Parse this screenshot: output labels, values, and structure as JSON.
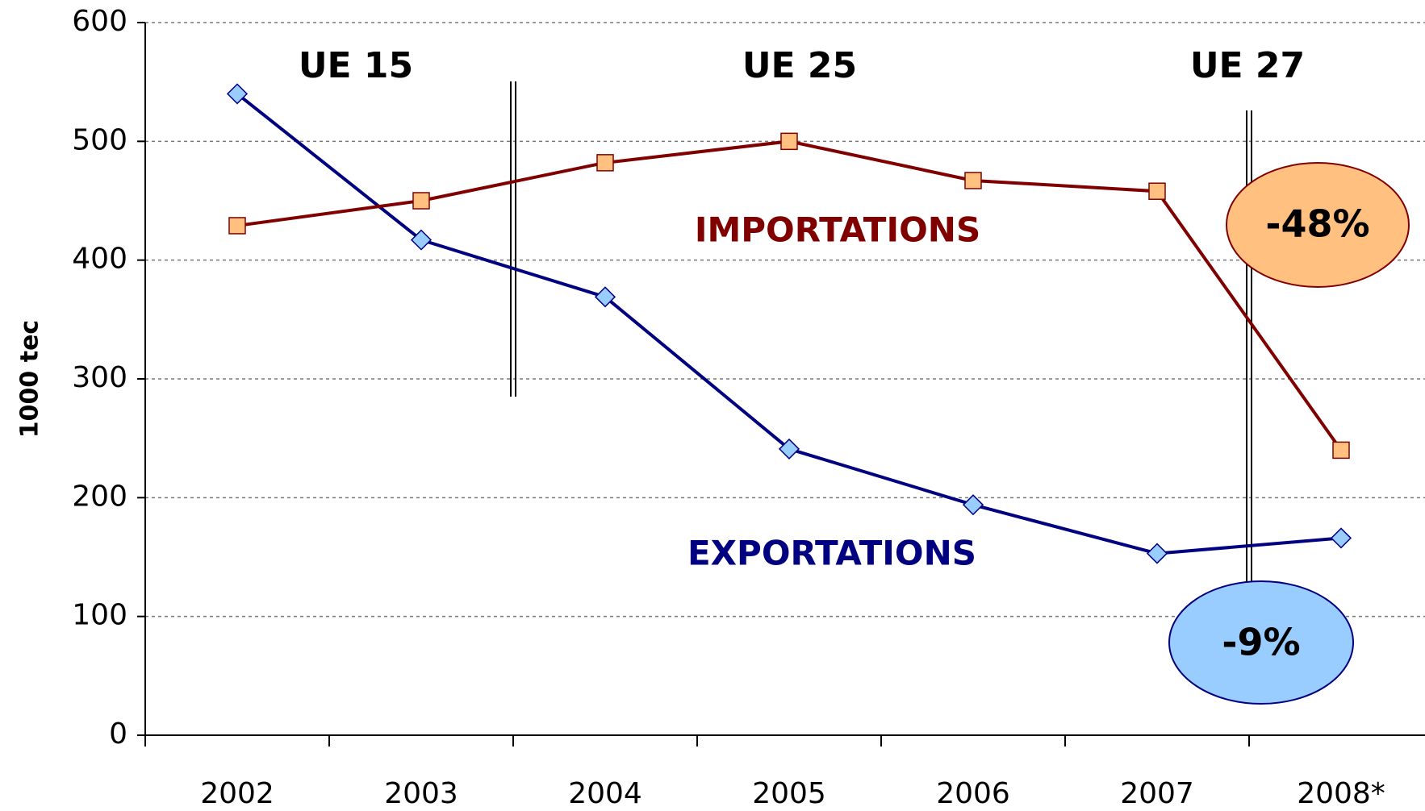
{
  "chart_data": {
    "type": "line",
    "ylabel": "1000 tec",
    "categories": [
      "2002",
      "2003",
      "2004",
      "2005",
      "2006",
      "2007",
      "2008*"
    ],
    "series": [
      {
        "name": "EXPORTATIONS",
        "color": "#000080",
        "marker_color": "#99ccff",
        "marker": "diamond",
        "values": [
          540,
          417,
          369,
          241,
          194,
          153,
          166
        ]
      },
      {
        "name": "IMPORTATIONS",
        "color": "#800000",
        "marker_color": "#ffc080",
        "marker": "square",
        "values": [
          429,
          450,
          482,
          500,
          467,
          458,
          240
        ]
      }
    ],
    "ylim": [
      0,
      600
    ],
    "yticks": [
      0,
      100,
      200,
      300,
      400,
      500,
      600
    ],
    "grid": true,
    "annotations": [
      "UE 15",
      "UE 25",
      "UE 27",
      "-48%",
      "-9%"
    ]
  }
}
